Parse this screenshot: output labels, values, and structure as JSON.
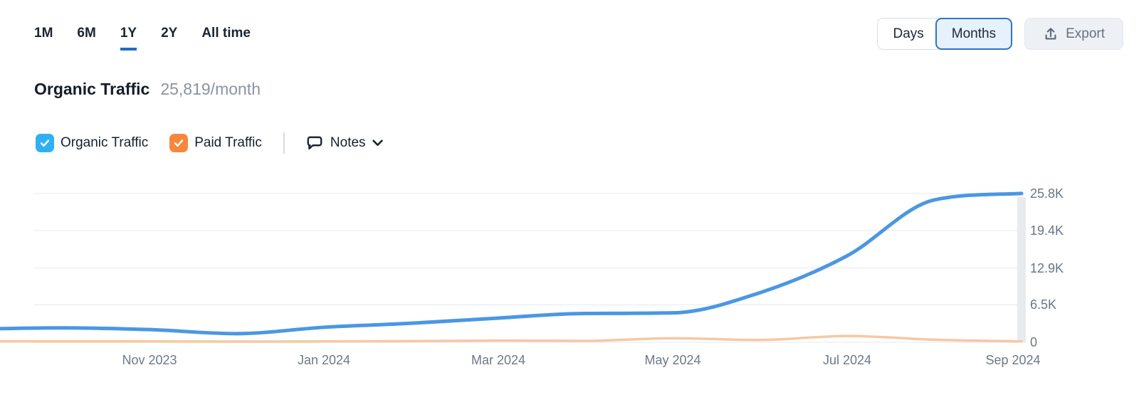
{
  "toolbar": {
    "ranges": [
      {
        "label": "1M",
        "active": false
      },
      {
        "label": "6M",
        "active": false
      },
      {
        "label": "1Y",
        "active": true
      },
      {
        "label": "2Y",
        "active": false
      },
      {
        "label": "All time",
        "active": false
      }
    ],
    "granularity": [
      {
        "label": "Days",
        "active": false
      },
      {
        "label": "Months",
        "active": true
      }
    ],
    "export_label": "Export",
    "export_icon": "upload-icon"
  },
  "header": {
    "title": "Organic Traffic",
    "subtitle": "25,819/month"
  },
  "legend": {
    "items": [
      {
        "label": "Organic Traffic",
        "checked": true,
        "color": "#2fb0f5",
        "icon": "checkmark-icon"
      },
      {
        "label": "Paid Traffic",
        "checked": true,
        "color": "#f8873c",
        "icon": "checkmark-icon"
      }
    ],
    "notes_label": "Notes",
    "notes_icon": "speech-bubble-icon",
    "chevron_icon": "chevron-down-icon"
  },
  "colors": {
    "accent_blue": "#1e6cc0",
    "selected_toggle_border": "#2e74c9",
    "grid": "#e9edf2",
    "current_period_band": "#e8eaee",
    "axis_text": "#6a7486"
  },
  "chart_data": {
    "type": "line",
    "title": "Organic Traffic",
    "xlabel": "",
    "ylabel": "",
    "grid": true,
    "legend_position": "top",
    "ylim": [
      0,
      25800
    ],
    "categories": [
      "Sep 2023",
      "Oct 2023",
      "Nov 2023",
      "Dec 2023",
      "Jan 2024",
      "Feb 2024",
      "Mar 2024",
      "Apr 2024",
      "May 2024",
      "Jun 2024",
      "Jul 2024",
      "Aug 2024",
      "Sep 2024"
    ],
    "series": [
      {
        "name": "Organic Traffic",
        "color": "#4a97e4",
        "width": 5,
        "values": [
          2300,
          2500,
          2200,
          1500,
          2600,
          3300,
          4200,
          5000,
          5100,
          8600,
          15000,
          24700,
          25819
        ]
      },
      {
        "name": "Paid Traffic",
        "color": "#f6c8a3",
        "width": 3.5,
        "values": [
          150,
          150,
          150,
          120,
          150,
          200,
          300,
          250,
          700,
          400,
          1100,
          450,
          150
        ]
      }
    ],
    "y_ticks": [
      {
        "label": "25.8K",
        "value": 25800
      },
      {
        "label": "19.4K",
        "value": 19400
      },
      {
        "label": "12.9K",
        "value": 12900
      },
      {
        "label": "6.5K",
        "value": 6500
      },
      {
        "label": "0",
        "value": 0
      }
    ],
    "x_ticks": [
      {
        "label": "Nov 2023",
        "index": 2
      },
      {
        "label": "Jan 2024",
        "index": 4
      },
      {
        "label": "Mar 2024",
        "index": 6
      },
      {
        "label": "May 2024",
        "index": 8
      },
      {
        "label": "Jul 2024",
        "index": 10
      },
      {
        "label": "Sep 2024",
        "index": 12
      }
    ]
  }
}
